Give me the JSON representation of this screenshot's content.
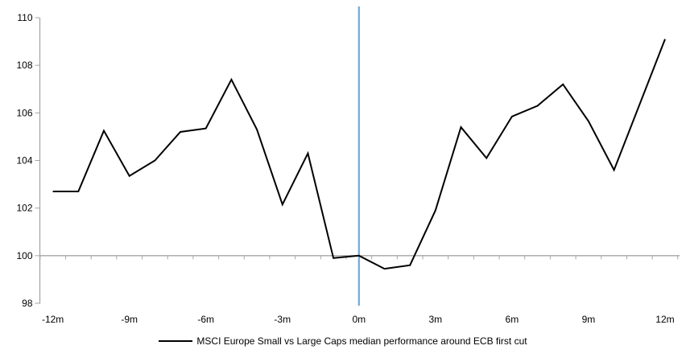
{
  "chart_data": {
    "type": "line",
    "title": "",
    "xlabel": "",
    "ylabel": "",
    "grid": "off",
    "legend_position": "bottom",
    "ylim": [
      98,
      110
    ],
    "y_ticks": [
      110,
      108,
      106,
      104,
      102,
      100,
      98
    ],
    "xlim_months": [
      -12,
      12
    ],
    "x_label_months": [
      -12,
      -9,
      -6,
      -3,
      0,
      3,
      6,
      9,
      12
    ],
    "x_tick_labels": [
      "-12m",
      "-9m",
      "-6m",
      "-3m",
      "0m",
      "3m",
      "6m",
      "9m",
      "12m"
    ],
    "baseline_value": 100,
    "axis_color": "#a6a6a6",
    "x_months": [
      -12,
      -11,
      -10,
      -9,
      -8,
      -7,
      -6,
      -5,
      -4,
      -3,
      -2,
      -1,
      0,
      1,
      2,
      3,
      4,
      5,
      6,
      7,
      8,
      9,
      10,
      11,
      12
    ],
    "series": [
      {
        "name": "MSCI Europe Small vs Large Caps median performance around ECB first cut",
        "color": "#000000",
        "values": [
          102.7,
          102.7,
          105.25,
          103.35,
          104.0,
          105.2,
          105.35,
          107.4,
          105.3,
          102.15,
          104.3,
          99.9,
          100.0,
          99.45,
          99.6,
          101.9,
          105.4,
          104.1,
          105.85,
          106.3,
          107.2,
          105.65,
          103.6,
          106.35,
          109.1
        ]
      }
    ],
    "event_line": {
      "position_month": 0,
      "color": "#74a9d4"
    }
  },
  "legend": {
    "series_label": "MSCI Europe Small vs Large Caps median performance around ECB first cut"
  }
}
